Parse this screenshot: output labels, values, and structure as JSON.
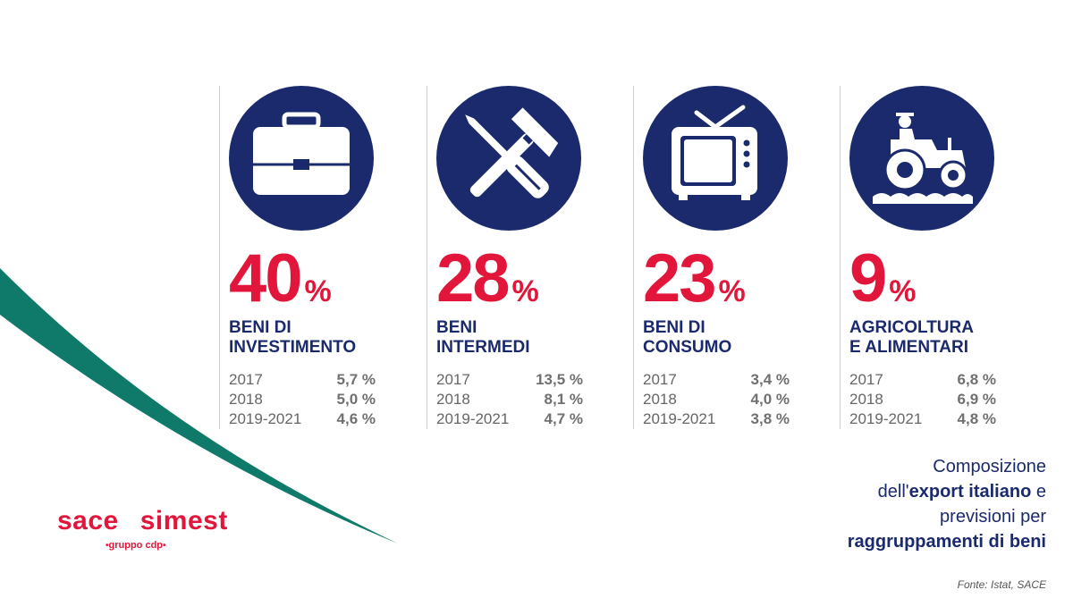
{
  "chart_data": {
    "type": "table",
    "categories": [
      {
        "share": "40",
        "unit": "%",
        "label_line1": "BENI DI",
        "label_line2": "INVESTIMENTO",
        "icon": "briefcase-icon",
        "rows": [
          {
            "period": "2017",
            "value": "5,7 %"
          },
          {
            "period": "2018",
            "value": "5,0 %"
          },
          {
            "period": "2019-2021",
            "value": "4,6 %"
          }
        ]
      },
      {
        "share": "28",
        "unit": "%",
        "label_line1": "BENI",
        "label_line2": "INTERMEDI",
        "icon": "tools-icon",
        "rows": [
          {
            "period": "2017",
            "value": "13,5 %"
          },
          {
            "period": "2018",
            "value": "8,1 %"
          },
          {
            "period": "2019-2021",
            "value": "4,7 %"
          }
        ]
      },
      {
        "share": "23",
        "unit": "%",
        "label_line1": "BENI DI",
        "label_line2": "CONSUMO",
        "icon": "tv-icon",
        "rows": [
          {
            "period": "2017",
            "value": "3,4 %"
          },
          {
            "period": "2018",
            "value": "4,0 %"
          },
          {
            "period": "2019-2021",
            "value": "3,8 %"
          }
        ]
      },
      {
        "share": "9",
        "unit": "%",
        "label_line1": "AGRICOLTURA",
        "label_line2": "E ALIMENTARI",
        "icon": "tractor-icon",
        "rows": [
          {
            "period": "2017",
            "value": "6,8 %"
          },
          {
            "period": "2018",
            "value": "6,9 %"
          },
          {
            "period": "2019-2021",
            "value": "4,8 %"
          }
        ]
      }
    ]
  },
  "caption": {
    "line1": "Composizione",
    "line2_pre": "dell'",
    "line2_bold": "export italiano",
    "line2_post": " e",
    "line3": "previsioni per",
    "line4_bold": "raggruppamenti di beni"
  },
  "source": "Fonte: Istat, SACE",
  "logo": {
    "left": "sace",
    "right": "simest",
    "sub": "gruppo cdp"
  },
  "colors": {
    "red": "#e2163a",
    "navy": "#1a2a6c",
    "teal": "#0f7a6a"
  }
}
